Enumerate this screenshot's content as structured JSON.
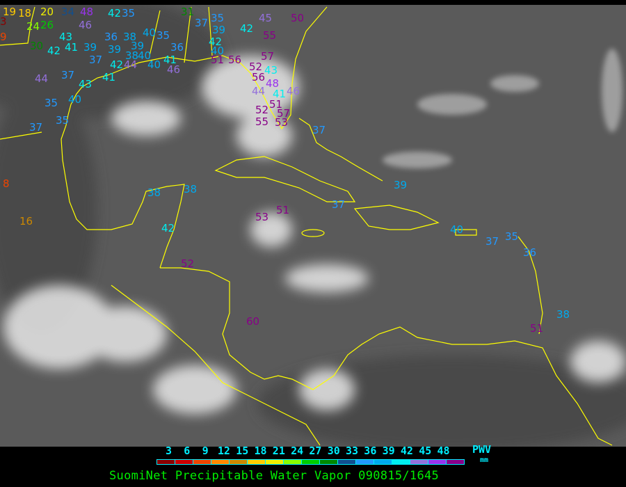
{
  "title": "SuomiNet Precipitable Water Vapor 090815/1645",
  "legend": {
    "unit_top": "PWV",
    "unit_bottom": "mm",
    "ticks": [
      "3",
      "6",
      "9",
      "12",
      "15",
      "18",
      "21",
      "24",
      "27",
      "30",
      "33",
      "36",
      "39",
      "42",
      "45",
      "48"
    ],
    "colors": [
      "#8b0000",
      "#cc0000",
      "#ee4400",
      "#ff8800",
      "#cc8800",
      "#ffcc00",
      "#eeee00",
      "#88ff00",
      "#00cc00",
      "#008800",
      "#114f8f",
      "#2299ff",
      "#00aaee",
      "#00eeee",
      "#9370db",
      "#9933ee",
      "#880088"
    ]
  },
  "map": {
    "background": "#5a5a5a",
    "coastline_color": "#ffff00",
    "station_values": [
      19,
      18,
      20,
      24,
      26,
      34,
      48,
      46,
      42,
      35,
      3,
      9,
      43,
      30,
      42,
      41,
      39,
      36,
      38,
      40,
      35,
      39,
      39,
      38,
      40,
      37,
      42,
      44,
      40,
      41,
      46,
      36,
      44,
      37,
      43,
      41,
      35,
      40,
      37,
      35,
      31,
      37,
      35,
      39,
      42,
      40,
      42,
      45,
      50,
      55,
      57,
      56,
      51,
      52,
      43,
      56,
      48,
      41,
      44,
      46,
      51,
      52,
      55,
      57,
      53,
      37,
      39,
      38,
      38,
      37,
      53,
      51,
      42,
      52,
      60,
      40,
      37,
      35,
      36,
      38,
      51,
      8,
      16
    ]
  }
}
